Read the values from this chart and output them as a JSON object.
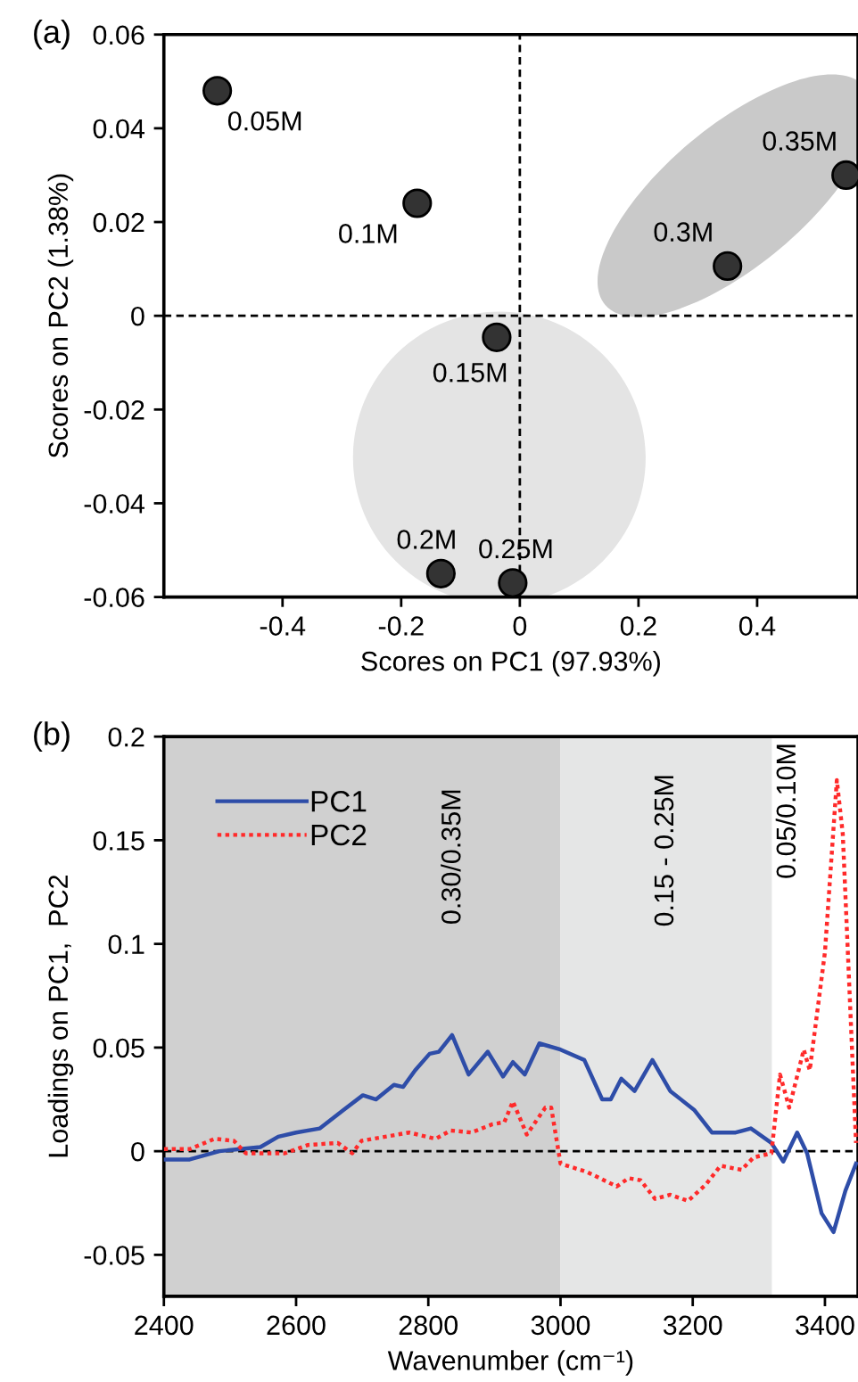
{
  "chart_data": [
    {
      "type": "scatter",
      "xlabel": "Scores on PC1 (97.93%)",
      "ylabel": "Scores on PC2 (1.38%)",
      "xlim": [
        -0.6,
        0.57
      ],
      "xticks": [
        -0.4,
        -0.2,
        0,
        0.2,
        0.4
      ],
      "ylim": [
        -0.06,
        0.06
      ],
      "yticks": [
        -0.06,
        -0.04,
        -0.02,
        0,
        0.02,
        0.04,
        0.06
      ],
      "series": [
        {
          "color": "#333333",
          "x": [
            -0.51,
            -0.173,
            -0.039,
            -0.133,
            -0.012,
            0.35,
            0.55
          ],
          "values": [
            0.048,
            0.024,
            -0.0046,
            -0.055,
            -0.057,
            0.0106,
            0.03
          ]
        }
      ],
      "marker": "circle",
      "grid": false,
      "legend": false,
      "ref_lines": [
        {
          "axis": "x",
          "value": 0,
          "line_style": "dashed",
          "color": "#000000"
        },
        {
          "axis": "y",
          "value": 0,
          "line_style": "dashed",
          "color": "#000000"
        }
      ],
      "annotations": [
        "(a)",
        {
          "text": "0.05M",
          "x": -0.51,
          "y": 0.048
        },
        {
          "text": "0.1M",
          "x": -0.173,
          "y": 0.024
        },
        {
          "text": "0.15M",
          "x": -0.039,
          "y": -0.0046
        },
        {
          "text": "0.2M",
          "x": -0.133,
          "y": -0.055
        },
        {
          "text": "0.25M",
          "x": -0.012,
          "y": -0.057
        },
        {
          "text": "0.3M",
          "x": 0.35,
          "y": 0.0106
        },
        {
          "text": "0.35M",
          "x": 0.55,
          "y": 0.03
        }
      ]
    },
    {
      "type": "line",
      "xlabel": "Wavenumber (cm⁻¹)",
      "ylabel": "Loadings on PC1,  PC2",
      "xlim": [
        2400,
        3450
      ],
      "xticks": [
        2400,
        2600,
        2800,
        3000,
        3200,
        3400
      ],
      "ylim": [
        -0.07,
        0.2
      ],
      "yticks": [
        -0.05,
        0,
        0.05,
        0.1,
        0.15,
        0.2
      ],
      "grid": false,
      "legend": "top left",
      "series": [
        {
          "name": "PC1",
          "color": "#2e4da8",
          "line_style": "solid",
          "x": [
            2400,
            2439,
            2484,
            2546,
            2573,
            2600,
            2636,
            2672,
            2701,
            2721,
            2748,
            2762,
            2780,
            2802,
            2816,
            2836,
            2861,
            2890,
            2913,
            2928,
            2946,
            2968,
            3000,
            3036,
            3063,
            3076,
            3092,
            3112,
            3139,
            3166,
            3202,
            3229,
            3265,
            3288,
            3319,
            3337,
            3358,
            3373,
            3395,
            3413,
            3431,
            3447
          ],
          "values": [
            -0.004,
            -0.004,
            0,
            0.002,
            0.007,
            0.009,
            0.011,
            0.02,
            0.027,
            0.025,
            0.032,
            0.031,
            0.039,
            0.047,
            0.048,
            0.056,
            0.037,
            0.048,
            0.036,
            0.043,
            0.037,
            0.052,
            0.049,
            0.044,
            0.025,
            0.025,
            0.035,
            0.029,
            0.044,
            0.029,
            0.02,
            0.009,
            0.009,
            0.011,
            0.004,
            -0.005,
            0.009,
            -0.001,
            -0.03,
            -0.039,
            -0.019,
            -0.006
          ]
        },
        {
          "name": "PC2",
          "color": "#ff2a2a",
          "line_style": "dotted",
          "x": [
            2400,
            2439,
            2477,
            2506,
            2524,
            2583,
            2618,
            2663,
            2685,
            2699,
            2735,
            2771,
            2811,
            2834,
            2865,
            2897,
            2915,
            2928,
            2949,
            2977,
            2986,
            3000,
            3040,
            3085,
            3103,
            3121,
            3143,
            3166,
            3193,
            3220,
            3242,
            3274,
            3292,
            3319,
            3332,
            3346,
            3368,
            3377,
            3400,
            3418,
            3427,
            3447
          ],
          "values": [
            0.001,
            0.001,
            0.006,
            0.005,
            -0.001,
            -0.001,
            0.003,
            0.004,
            -0.001,
            0.005,
            0.007,
            0.009,
            0.006,
            0.01,
            0.009,
            0.013,
            0.014,
            0.024,
            0.008,
            0.021,
            0.021,
            -0.006,
            -0.01,
            -0.017,
            -0.013,
            -0.014,
            -0.023,
            -0.021,
            -0.024,
            -0.016,
            -0.007,
            -0.009,
            -0.003,
            -0.001,
            0.037,
            0.021,
            0.049,
            0.039,
            0.096,
            0.179,
            0.153,
            0.004
          ]
        }
      ],
      "ref_lines": [
        {
          "axis": "y",
          "value": 0,
          "line_style": "dashed",
          "color": "#000000"
        }
      ],
      "bands": [
        {
          "axis": "x",
          "from": 2400,
          "to": 3000,
          "label": "0.30/0.35M",
          "color": "#d0d0d0"
        },
        {
          "axis": "x",
          "from": 3000,
          "to": 3320,
          "label": "0.15 - 0.25M",
          "color": "#e5e6e6"
        },
        {
          "axis": "x",
          "from": 3320,
          "to": 3450,
          "label": "0.05/0.10M",
          "color": "#ffffff"
        }
      ],
      "annotations": [
        "(b)"
      ]
    }
  ]
}
